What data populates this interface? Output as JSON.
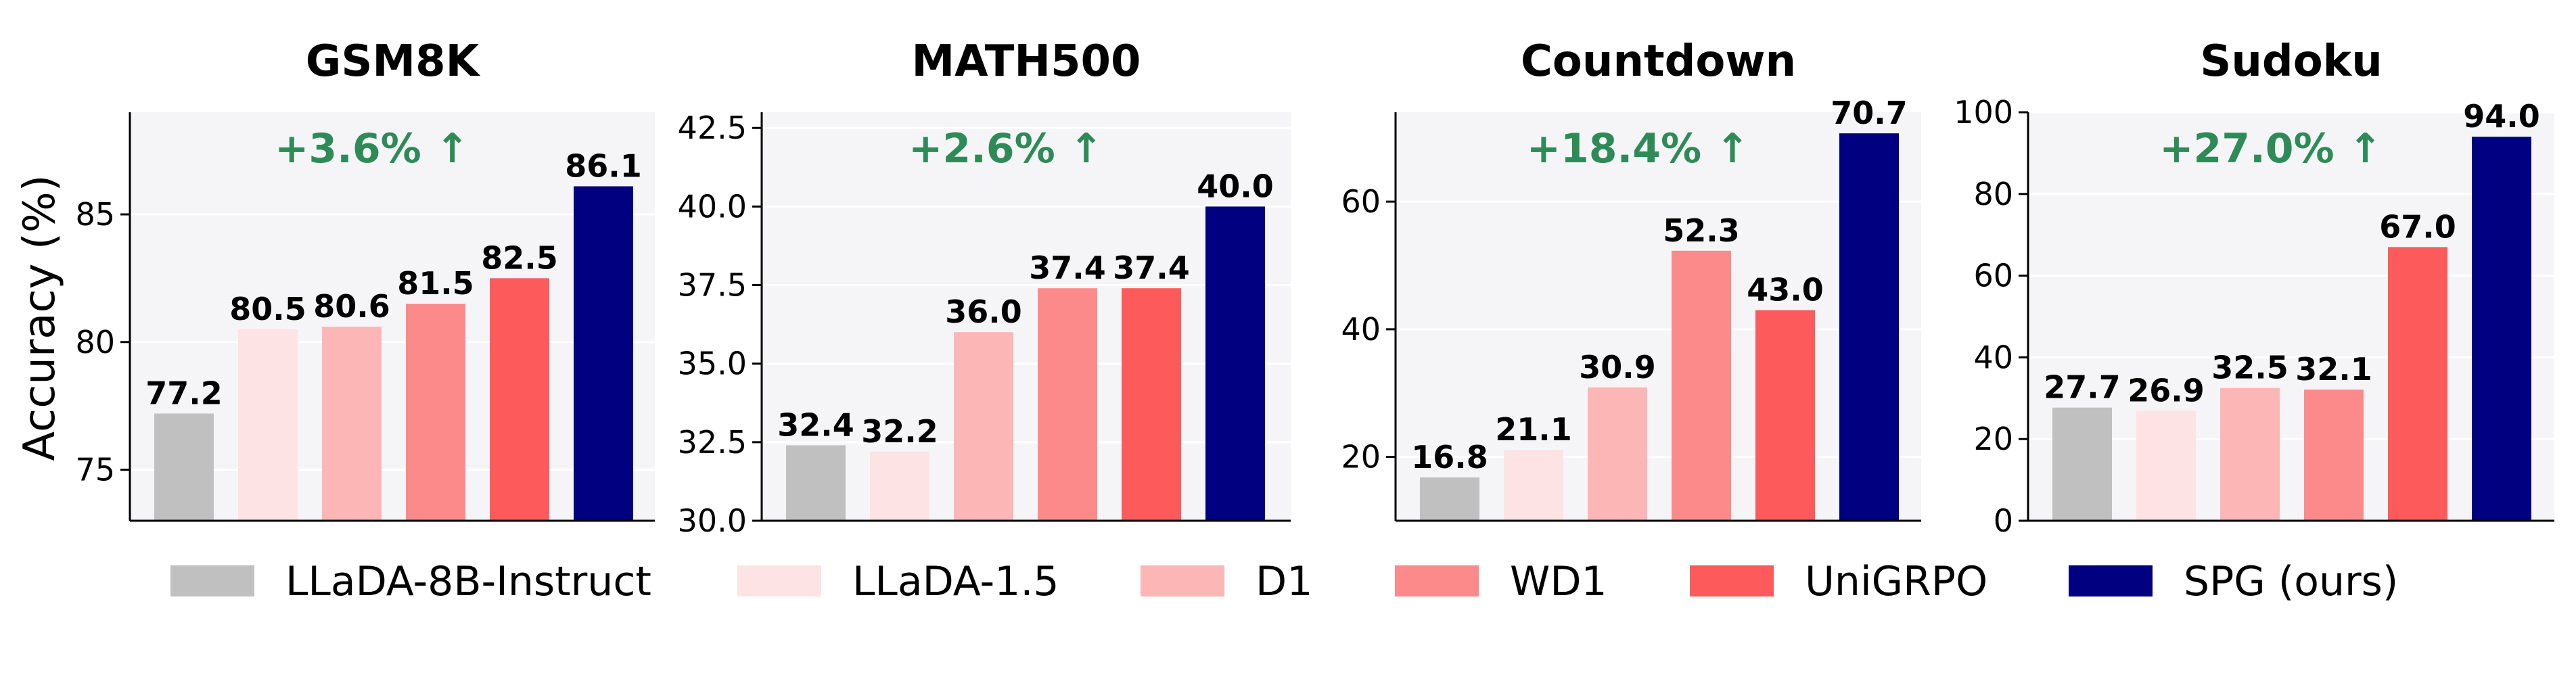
{
  "legend": [
    {
      "label": "LLaDA-8B-Instruct",
      "color": "#c0c0c0"
    },
    {
      "label": "LLaDA-1.5",
      "color": "#fde3e3"
    },
    {
      "label": "D1",
      "color": "#fcb6b6"
    },
    {
      "label": "WD1",
      "color": "#fd8a8a"
    },
    {
      "label": "UniGRPO",
      "color": "#fd5b5b"
    },
    {
      "label": "SPG (ours)",
      "color": "#000080"
    }
  ],
  "chart_data": [
    {
      "type": "bar",
      "title": "GSM8K",
      "ylabel": "Accuracy (%)",
      "categories": [
        "LLaDA-8B-Instruct",
        "LLaDA-1.5",
        "D1",
        "WD1",
        "UniGRPO",
        "SPG (ours)"
      ],
      "values": [
        77.2,
        80.5,
        80.6,
        81.5,
        82.5,
        86.1
      ],
      "value_labels": [
        "77.2",
        "80.5",
        "80.6",
        "81.5",
        "82.5",
        "86.1"
      ],
      "ylim": [
        73,
        89
      ],
      "yticks": [
        75,
        80,
        85
      ],
      "ytick_labels": [
        "75",
        "80",
        "85"
      ],
      "annotation": "+3.6% ↑",
      "grid": true
    },
    {
      "type": "bar",
      "title": "MATH500",
      "ylabel": "",
      "categories": [
        "LLaDA-8B-Instruct",
        "LLaDA-1.5",
        "D1",
        "WD1",
        "UniGRPO",
        "SPG (ours)"
      ],
      "values": [
        32.4,
        32.2,
        36.0,
        37.4,
        37.4,
        40.0
      ],
      "value_labels": [
        "32.4",
        "32.2",
        "36.0",
        "37.4",
        "37.4",
        "40.0"
      ],
      "ylim": [
        30,
        43
      ],
      "yticks": [
        30.0,
        32.5,
        35.0,
        37.5,
        40.0,
        42.5
      ],
      "ytick_labels": [
        "30.0",
        "32.5",
        "35.0",
        "37.5",
        "40.0",
        "42.5"
      ],
      "annotation": "+2.6% ↑",
      "grid": true
    },
    {
      "type": "bar",
      "title": "Countdown",
      "ylabel": "",
      "categories": [
        "LLaDA-8B-Instruct",
        "LLaDA-1.5",
        "D1",
        "WD1",
        "UniGRPO",
        "SPG (ours)"
      ],
      "values": [
        16.8,
        21.1,
        30.9,
        52.3,
        43.0,
        70.7
      ],
      "value_labels": [
        "16.8",
        "21.1",
        "30.9",
        "52.3",
        "43.0",
        "70.7"
      ],
      "ylim": [
        10,
        74
      ],
      "yticks": [
        20,
        40,
        60
      ],
      "ytick_labels": [
        "20",
        "40",
        "60"
      ],
      "annotation": "+18.4% ↑",
      "grid": true
    },
    {
      "type": "bar",
      "title": "Sudoku",
      "ylabel": "",
      "categories": [
        "LLaDA-8B-Instruct",
        "LLaDA-1.5",
        "D1",
        "WD1",
        "UniGRPO",
        "SPG (ours)"
      ],
      "values": [
        27.7,
        26.9,
        32.5,
        32.1,
        67.0,
        94.0
      ],
      "value_labels": [
        "27.7",
        "26.9",
        "32.5",
        "32.1",
        "67.0",
        "94.0"
      ],
      "ylim": [
        0,
        100
      ],
      "yticks": [
        0,
        20,
        40,
        60,
        80,
        100
      ],
      "ytick_labels": [
        "0",
        "20",
        "40",
        "60",
        "80",
        "100"
      ],
      "annotation": "+27.0% ↑",
      "grid": true
    }
  ]
}
